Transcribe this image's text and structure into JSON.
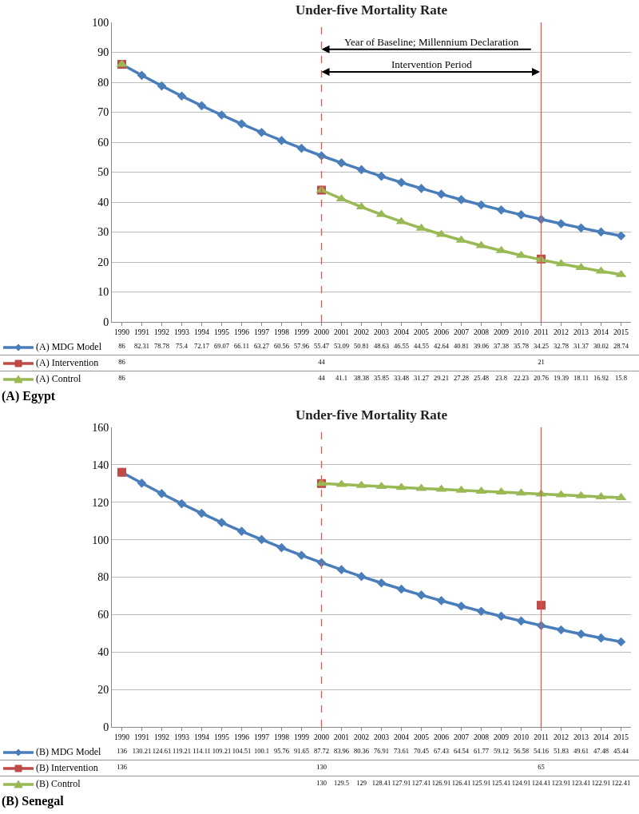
{
  "chart_data": [
    {
      "type": "line",
      "title": "Under-five Mortality Rate",
      "subtitle": "(A) Egypt",
      "categories": [
        "1990",
        "1991",
        "1992",
        "1993",
        "1994",
        "1995",
        "1996",
        "1997",
        "1998",
        "1999",
        "2000",
        "2001",
        "2002",
        "2003",
        "2004",
        "2005",
        "2006",
        "2007",
        "2008",
        "2009",
        "2010",
        "2011",
        "2012",
        "2013",
        "2014",
        "2015"
      ],
      "series": [
        {
          "name": "(A) MDG Model",
          "color": "#4a7ebb",
          "marker": "diamond",
          "values": [
            86,
            82.31,
            78.78,
            75.4,
            72.17,
            69.07,
            66.11,
            63.27,
            60.56,
            57.96,
            55.47,
            53.09,
            50.81,
            48.63,
            46.55,
            44.55,
            42.64,
            40.81,
            39.06,
            37.38,
            35.78,
            34.25,
            32.78,
            31.37,
            30.02,
            28.74
          ]
        },
        {
          "name": "(A) Intervention",
          "color": "#be4b48",
          "marker": "square",
          "type": "scatter",
          "values": [
            86,
            null,
            null,
            null,
            null,
            null,
            null,
            null,
            null,
            null,
            44,
            null,
            null,
            null,
            null,
            null,
            null,
            null,
            null,
            null,
            null,
            21,
            null,
            null,
            null,
            null
          ]
        },
        {
          "name": "(A) Control",
          "color": "#98b954",
          "marker": "triangle",
          "values": [
            86,
            null,
            null,
            null,
            null,
            null,
            null,
            null,
            null,
            null,
            44,
            41.1,
            38.38,
            35.85,
            33.48,
            31.27,
            29.21,
            27.28,
            25.48,
            23.8,
            22.23,
            20.76,
            19.39,
            18.11,
            16.92,
            15.8
          ]
        }
      ],
      "ylim": [
        0,
        100
      ],
      "yticks": [
        0,
        10,
        20,
        30,
        40,
        50,
        60,
        70,
        80,
        90,
        100
      ],
      "grid": "y",
      "legend": "bottom",
      "data_labels": true,
      "ref_lines": [
        {
          "axis": "x",
          "value": "2000",
          "color": "#e0584f",
          "line_style": "dashed"
        },
        {
          "axis": "x",
          "value": "2011",
          "color": "#e0584f",
          "line_style": "solid"
        }
      ],
      "annotations": [
        "Year of Baseline; Millennium Declaration",
        "Intervention Period"
      ]
    },
    {
      "type": "line",
      "title": "Under-five Mortality Rate",
      "subtitle": "(B) Senegal",
      "categories": [
        "1990",
        "1991",
        "1992",
        "1993",
        "1994",
        "1995",
        "1996",
        "1997",
        "1998",
        "1999",
        "2000",
        "2001",
        "2002",
        "2003",
        "2004",
        "2005",
        "2006",
        "2007",
        "2008",
        "2009",
        "2010",
        "2011",
        "2012",
        "2013",
        "2014",
        "2015"
      ],
      "series": [
        {
          "name": "(B) MDG Model",
          "color": "#4a7ebb",
          "marker": "diamond",
          "values": [
            136,
            130.21,
            124.61,
            119.21,
            114.11,
            109.21,
            104.51,
            100.1,
            95.76,
            91.65,
            87.72,
            83.96,
            80.36,
            76.91,
            73.61,
            70.45,
            67.43,
            64.54,
            61.77,
            59.12,
            56.58,
            54.16,
            51.83,
            49.61,
            47.48,
            45.44
          ]
        },
        {
          "name": "(B) Intervention",
          "color": "#be4b48",
          "marker": "square",
          "type": "scatter",
          "values": [
            136,
            null,
            null,
            null,
            null,
            null,
            null,
            null,
            null,
            null,
            130,
            null,
            null,
            null,
            null,
            null,
            null,
            null,
            null,
            null,
            null,
            65,
            null,
            null,
            null,
            null
          ]
        },
        {
          "name": "(B) Control",
          "color": "#98b954",
          "marker": "triangle",
          "values": [
            null,
            null,
            null,
            null,
            null,
            null,
            null,
            null,
            null,
            null,
            130,
            129.5,
            129,
            128.41,
            127.91,
            127.41,
            126.91,
            126.41,
            125.91,
            125.41,
            124.91,
            124.41,
            123.91,
            123.41,
            122.91,
            122.41
          ]
        }
      ],
      "ylim": [
        0,
        160
      ],
      "yticks": [
        0,
        20,
        40,
        60,
        80,
        100,
        120,
        140,
        160
      ],
      "grid": "y",
      "legend": "bottom",
      "data_labels": true,
      "ref_lines": [
        {
          "axis": "x",
          "value": "2000",
          "color": "#e0584f",
          "line_style": "dashed"
        },
        {
          "axis": "x",
          "value": "2011",
          "color": "#e0584f",
          "line_style": "solid"
        }
      ]
    }
  ]
}
